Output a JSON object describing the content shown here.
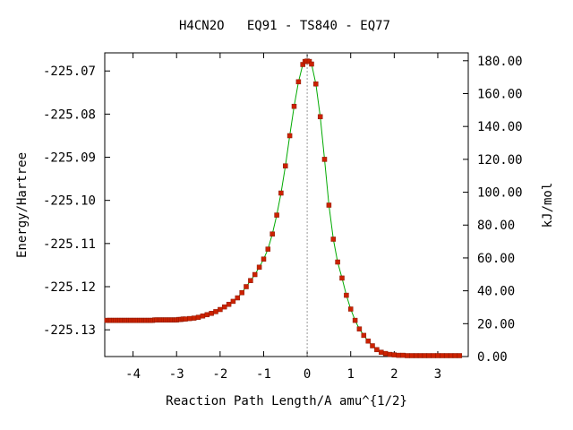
{
  "chart_data": {
    "type": "scatter",
    "title": "H4CN2O   EQ91 - TS840 - EQ77",
    "xlabel": "Reaction Path Length/A amu^{1/2}",
    "ylabel": "Energy/Hartree",
    "y2label": "kJ/mol",
    "xlim": [
      -4.65,
      3.7
    ],
    "ylim": [
      -225.1362,
      -225.0658
    ],
    "y2lim": [
      0,
      184.8
    ],
    "x_ticks": [
      -4,
      -3,
      -2,
      -1,
      0,
      1,
      2,
      3
    ],
    "x_tick_labels": [
      "-4",
      "-3",
      "-2",
      "-1",
      "0",
      "1",
      "2",
      "3"
    ],
    "y_ticks": [
      -225.07,
      -225.08,
      -225.09,
      -225.1,
      -225.11,
      -225.12,
      -225.13
    ],
    "y_tick_labels": [
      "-225.07",
      "-225.08",
      "-225.09",
      "-225.10",
      "-225.11",
      "-225.12",
      "-225.13"
    ],
    "y2_ticks": [
      0,
      20,
      40,
      60,
      80,
      100,
      120,
      140,
      160,
      180
    ],
    "y2_tick_labels": [
      "0.00",
      "20.00",
      "40.00",
      "60.00",
      "80.00",
      "100.00",
      "120.00",
      "140.00",
      "160.00",
      "180.00"
    ],
    "ts_marker_x": 0,
    "grid": false,
    "colors": {
      "line": "#00aa00",
      "marker": "#cc2200",
      "marker_edge": "#8a1500",
      "ts_line": "#999999"
    },
    "series": [
      {
        "x": [
          -4.6,
          -4.55,
          -4.5,
          -4.45,
          -4.4,
          -4.35,
          -4.3,
          -4.25,
          -4.2,
          -4.15,
          -4.1,
          -4.05,
          -4.0,
          -3.95,
          -3.9,
          -3.85,
          -3.8,
          -3.75,
          -3.7,
          -3.65,
          -3.6,
          -3.55,
          -3.5,
          -3.45,
          -3.4,
          -3.35,
          -3.3,
          -3.25,
          -3.2,
          -3.15,
          -3.1,
          -3.05,
          -3.0,
          -2.95,
          -2.9,
          -2.85,
          -2.8,
          -2.7,
          -2.6,
          -2.5,
          -2.4,
          -2.3,
          -2.2,
          -2.1,
          -2.0,
          -1.9,
          -1.8,
          -1.7,
          -1.6,
          -1.5,
          -1.4,
          -1.3,
          -1.2,
          -1.1,
          -1.0,
          -0.9,
          -0.8,
          -0.7,
          -0.6,
          -0.5,
          -0.4,
          -0.3,
          -0.2,
          -0.1,
          -0.05,
          0.0,
          0.05,
          0.1,
          0.2,
          0.3,
          0.4,
          0.5,
          0.6,
          0.7,
          0.8,
          0.9,
          1.0,
          1.1,
          1.2,
          1.3,
          1.4,
          1.5,
          1.6,
          1.7,
          1.8,
          1.9,
          2.0,
          2.1,
          2.2,
          2.3,
          2.4,
          2.5,
          2.6,
          2.7,
          2.8,
          2.9,
          3.0,
          3.1,
          3.2,
          3.3,
          3.4,
          3.5
        ],
        "y": [
          -225.1278,
          -225.1278,
          -225.1278,
          -225.1278,
          -225.1278,
          -225.1278,
          -225.1278,
          -225.1278,
          -225.1278,
          -225.1278,
          -225.1278,
          -225.1278,
          -225.1278,
          -225.1278,
          -225.1278,
          -225.1278,
          -225.1278,
          -225.1278,
          -225.1278,
          -225.1278,
          -225.1278,
          -225.1278,
          -225.1277,
          -225.1277,
          -225.1277,
          -225.1277,
          -225.1277,
          -225.1277,
          -225.1277,
          -225.1277,
          -225.1277,
          -225.1277,
          -225.1277,
          -225.1276,
          -225.1276,
          -225.1275,
          -225.1275,
          -225.1274,
          -225.1273,
          -225.1271,
          -225.1268,
          -225.1265,
          -225.1262,
          -225.1258,
          -225.1253,
          -225.1247,
          -225.1241,
          -225.1234,
          -225.1226,
          -225.1214,
          -225.12,
          -225.1186,
          -225.1172,
          -225.1155,
          -225.1136,
          -225.1113,
          -225.1078,
          -225.1034,
          -225.0983,
          -225.092,
          -225.085,
          -225.0782,
          -225.0725,
          -225.0685,
          -225.0678,
          -225.0677,
          -225.0678,
          -225.0684,
          -225.073,
          -225.0806,
          -225.0905,
          -225.1011,
          -225.109,
          -225.1143,
          -225.118,
          -225.122,
          -225.1252,
          -225.1278,
          -225.1298,
          -225.1313,
          -225.1326,
          -225.1337,
          -225.1346,
          -225.1352,
          -225.1355,
          -225.1357,
          -225.1358,
          -225.1359,
          -225.1359,
          -225.136,
          -225.136,
          -225.136,
          -225.136,
          -225.136,
          -225.136,
          -225.136,
          -225.136,
          -225.136,
          -225.136,
          -225.136,
          -225.136,
          -225.136
        ]
      }
    ]
  }
}
